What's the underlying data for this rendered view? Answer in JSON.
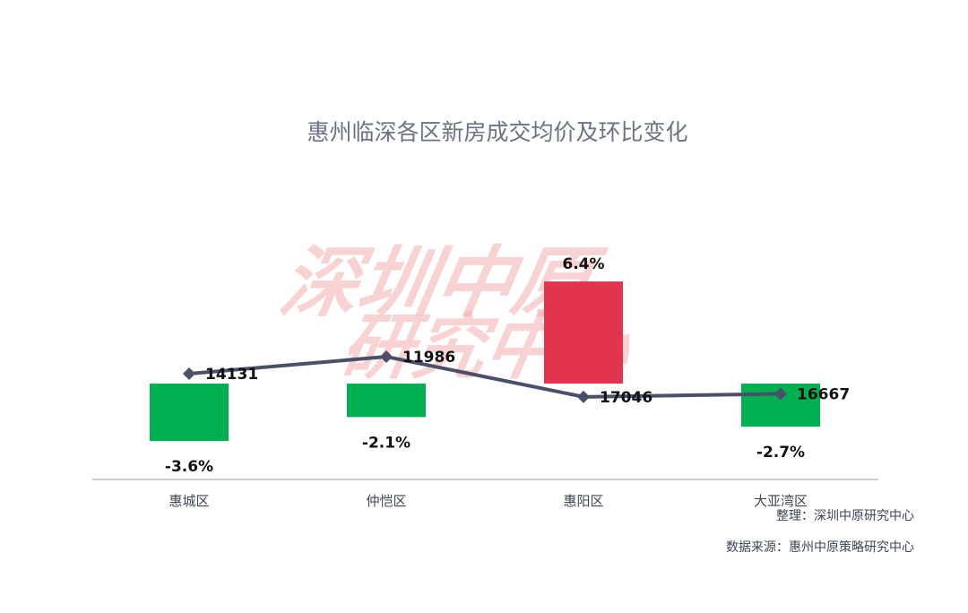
{
  "chart_data": {
    "type": "bar",
    "title": "惠州临深各区新房成交均价及环比变化",
    "categories": [
      "惠城区",
      "仲恺区",
      "惠阳区",
      "大亚湾区"
    ],
    "series": [
      {
        "kind": "bar",
        "values": [
          -3.6,
          -2.1,
          6.4,
          -2.7
        ],
        "labels": [
          "-3.6%",
          "-2.1%",
          "6.4%",
          "-2.7%"
        ],
        "positive_color": "#e0344f",
        "negative_color": "#00b050"
      },
      {
        "kind": "line",
        "values": [
          14131,
          11986,
          17046,
          16667
        ],
        "labels": [
          "14131",
          "11986",
          "17046",
          "16667"
        ],
        "color": "#4a4f6a",
        "marker": "diamond"
      }
    ],
    "xlabel": "",
    "ylabel": "",
    "grid": false,
    "legend": "none"
  },
  "watermark": {
    "line1": "深圳中原",
    "line2": "研究中心"
  },
  "notes": {
    "compiler": "整理：深圳中原研究中心",
    "source": "数据来源：惠州中原策略研究中心"
  }
}
